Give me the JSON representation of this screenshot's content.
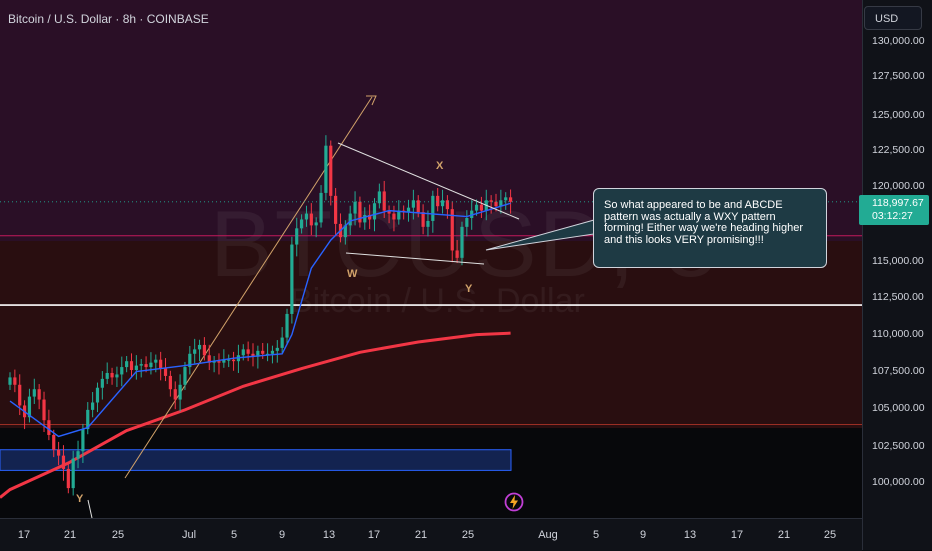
{
  "header": {
    "title": "Bitcoin / U.S. Dollar · 8h · COINBASE"
  },
  "watermark": {
    "symbol": "BTCUSD, 8",
    "name": "Bitcoin / U.S. Dollar"
  },
  "price_axis": {
    "currency": "USD",
    "ticks": [
      "130,000.00",
      "127,500.00",
      "125,000.00",
      "122,500.00",
      "120,000.00",
      "117,500.00",
      "115,000.00",
      "112,500.00",
      "110,000.00",
      "107,500.00",
      "105,000.00",
      "102,500.00",
      "100,000.00"
    ],
    "last_price": "118,997.67",
    "countdown": "03:12:27"
  },
  "time_axis": {
    "ticks": [
      "17",
      "21",
      "25",
      "Jul",
      "5",
      "9",
      "13",
      "17",
      "21",
      "25",
      "Aug",
      "5",
      "9",
      "13",
      "17",
      "21",
      "25"
    ]
  },
  "annotation": {
    "text": "So what appeared to be and ABCDE pattern was actually a WXY pattern forming! Either way we're heading higher and this looks VERY promising!!!"
  },
  "wave_labels": {
    "x": "X",
    "w": "W",
    "y1": "Y",
    "y2": "Y"
  },
  "colors": {
    "up": "#22ab94",
    "down": "#f23645",
    "ma_fast": "#2962ff",
    "ma_slow": "#f23645",
    "resistance_zone": "#2a0f26",
    "support_zone": "#290e10",
    "demand_box": "#1e3a8a"
  },
  "chart_data": {
    "type": "candlestick",
    "symbol": "Bitcoin / U.S. Dollar",
    "interval": "8h",
    "exchange": "COINBASE",
    "ylim": [
      98000,
      130500
    ],
    "x": [
      "17",
      "21",
      "25",
      "Jul",
      "5",
      "9",
      "13",
      "17",
      "21",
      "25",
      "Aug",
      "5",
      "9",
      "13",
      "17",
      "21",
      "25"
    ],
    "last_price": 118997.67,
    "closes": [
      107100,
      106600,
      105200,
      104400,
      105800,
      106300,
      105600,
      104200,
      103200,
      102200,
      101800,
      100900,
      99600,
      101600,
      102100,
      103600,
      104900,
      105400,
      106400,
      107000,
      107400,
      107100,
      107300,
      107800,
      108200,
      107600,
      107900,
      108000,
      107800,
      108100,
      108300,
      107700,
      107200,
      106300,
      105600,
      106600,
      107800,
      108700,
      109000,
      109300,
      108600,
      108100,
      108200,
      108100,
      108300,
      108300,
      108200,
      108600,
      109000,
      108700,
      108500,
      108900,
      108700,
      108700,
      108900,
      109100,
      109800,
      111400,
      116100,
      117200,
      117800,
      118200,
      117400,
      117600,
      119600,
      122800,
      119400,
      117500,
      116600,
      117400,
      118200,
      119000,
      117600,
      118100,
      117800,
      118900,
      119700,
      118400,
      118200,
      117800,
      118400,
      118300,
      118600,
      119100,
      118300,
      117300,
      117700,
      119400,
      118700,
      119100,
      118500,
      115700,
      115200,
      117300,
      117900,
      118400,
      118800,
      118400,
      119100,
      119000,
      118700,
      119100,
      119300,
      118997.67
    ],
    "series": [
      {
        "name": "",
        "kind": "moving_average_fast",
        "points": [
          [
            0,
            105500
          ],
          [
            10,
            103100
          ],
          [
            16,
            103700
          ],
          [
            26,
            107500
          ],
          [
            36,
            107900
          ],
          [
            46,
            108400
          ],
          [
            56,
            108700
          ],
          [
            58,
            110000
          ],
          [
            62,
            114500
          ],
          [
            66,
            116400
          ],
          [
            70,
            117700
          ],
          [
            78,
            118400
          ],
          [
            94,
            118000
          ],
          [
            103,
            118900
          ]
        ]
      },
      {
        "name": "",
        "kind": "moving_average_slow",
        "points": [
          [
            0,
            99500
          ],
          [
            12,
            101300
          ],
          [
            24,
            103500
          ],
          [
            36,
            104900
          ],
          [
            48,
            106500
          ],
          [
            60,
            107700
          ],
          [
            72,
            108800
          ],
          [
            84,
            109500
          ],
          [
            96,
            110000
          ],
          [
            103,
            110100
          ]
        ]
      }
    ],
    "zones": [
      {
        "kind": "resistance",
        "from": 116700,
        "to": 130500
      },
      {
        "kind": "support",
        "from": 103900,
        "to": 116700
      },
      {
        "kind": "demand_box",
        "from": 100800,
        "to": 102200
      }
    ],
    "levels": [
      112000,
      116700
    ],
    "wave_labels": [
      "W",
      "X",
      "Y"
    ]
  }
}
